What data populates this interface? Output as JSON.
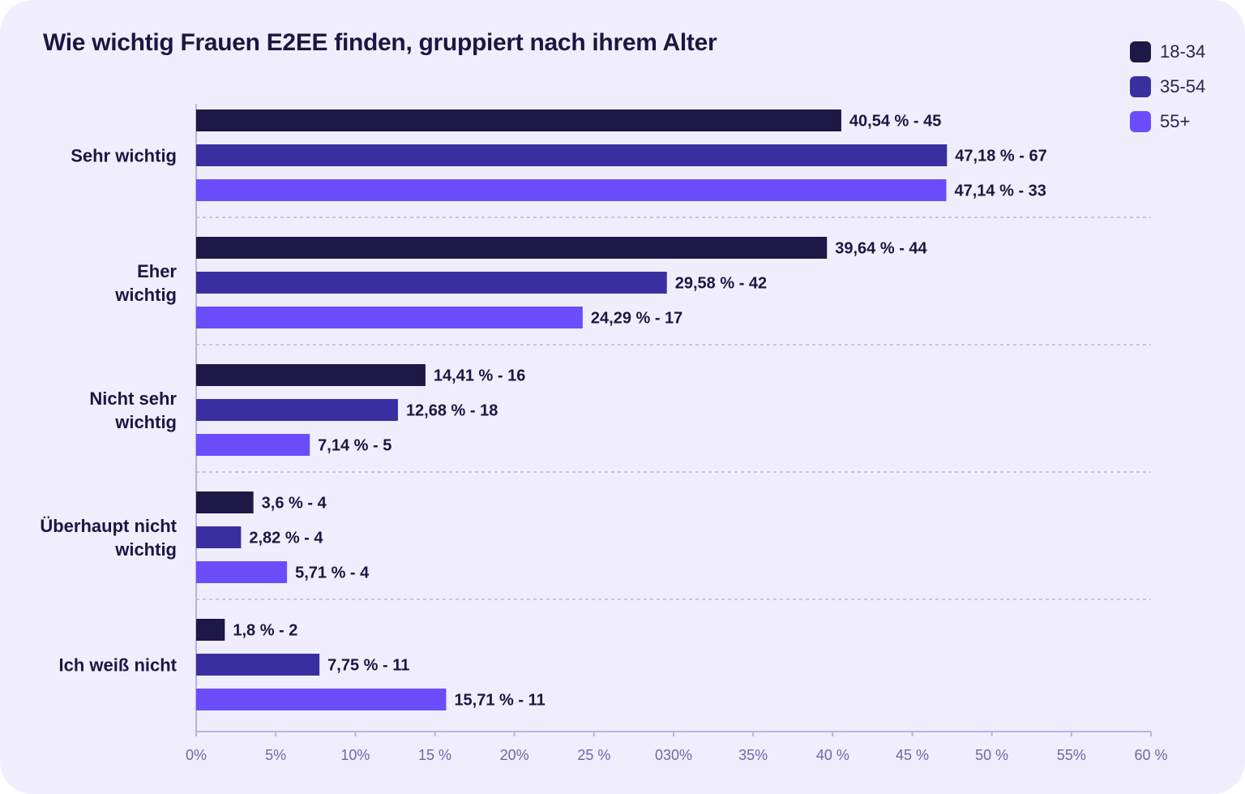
{
  "chart_data": {
    "type": "bar",
    "orientation": "horizontal",
    "title": "Wie wichtig Frauen E2EE finden, gruppiert nach ihrem Alter",
    "categories": [
      [
        "Sehr wichtig"
      ],
      [
        "Eher",
        "wichtig"
      ],
      [
        "Nicht sehr",
        "wichtig"
      ],
      [
        "Überhaupt nicht",
        "wichtig"
      ],
      [
        "Ich weiß nicht"
      ]
    ],
    "series": [
      {
        "name": "18-34",
        "color": "#1e1846",
        "values": [
          40.54,
          39.64,
          14.41,
          3.6,
          1.8
        ],
        "labels": [
          "40,54 % - 45",
          "39,64 % - 44",
          "14,41 % - 16",
          "3,6 % - 4",
          "1,8 % - 2"
        ]
      },
      {
        "name": "35-54",
        "color": "#3a2fa0",
        "values": [
          47.18,
          29.58,
          12.68,
          2.82,
          7.75
        ],
        "labels": [
          "47,18 % - 67",
          "29,58 % - 42",
          "12,68 % - 18",
          "2,82 % - 4",
          "7,75 % - 11"
        ]
      },
      {
        "name": "55+",
        "color": "#6b4dfb",
        "values": [
          47.14,
          24.29,
          7.14,
          5.71,
          15.71
        ],
        "labels": [
          "47,14 % - 33",
          "24,29 % - 17",
          "7,14 % - 5",
          "5,71 % - 4",
          "15,71 % - 11"
        ]
      }
    ],
    "xlim": [
      0,
      60
    ],
    "xticks": [
      0,
      5,
      10,
      15,
      20,
      25,
      30,
      35,
      40,
      45,
      50,
      55,
      60
    ],
    "xtick_labels": [
      "0%",
      "5%",
      "10%",
      "15 %",
      "20%",
      "25 %",
      "030%",
      "35%",
      "40 %",
      "45 %",
      "50 %",
      "55%",
      "60 %"
    ],
    "grid": "dashed separators between category groups",
    "legend_position": "top-right"
  }
}
